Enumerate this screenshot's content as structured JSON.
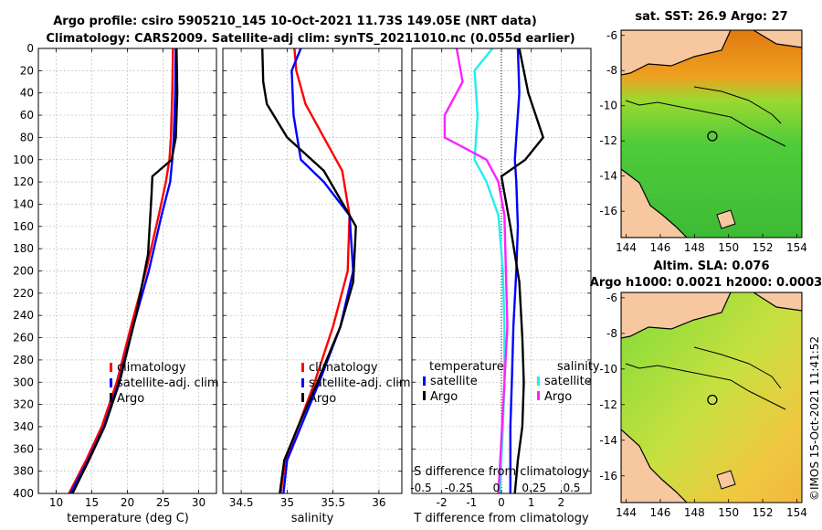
{
  "title": {
    "line1": "Argo profile: csiro 5905210_145 10-Oct-2021 11.73S 149.05E (NRT data)",
    "line2": "Climatology: CARS2009. Satellite-adj clim: synTS_20211010.nc (0.055d earlier)"
  },
  "footer": "©IMOS 15-Oct-2021 11:41:52",
  "colors": {
    "climatology": "#ff0000",
    "satellite": "#0000ff",
    "argo": "#000000",
    "s_satellite": "#22eeee",
    "s_argo": "#ff22ff",
    "land": "#f7c8a0",
    "coast": "#000000",
    "map_marker": "#000000"
  },
  "legend": {
    "climatology": "climatology",
    "satellite_adj": "satellite-adj. clim",
    "argo": "Argo",
    "temperature": "temperature",
    "salinity": "salinity",
    "satellite": "satellite"
  },
  "chart_data": [
    {
      "id": "temperature",
      "type": "line",
      "xlabel": "temperature (deg C)",
      "ylabel": "",
      "xlim": [
        7.5,
        32.5
      ],
      "xticks": [
        10,
        15,
        20,
        25,
        30
      ],
      "ylim": [
        0,
        400
      ],
      "yticks": [
        0,
        20,
        40,
        60,
        80,
        100,
        120,
        140,
        160,
        180,
        200,
        220,
        240,
        260,
        280,
        300,
        320,
        340,
        360,
        380,
        400
      ],
      "y_reversed": true,
      "grid": true,
      "series": [
        {
          "name": "climatology",
          "color": "red",
          "x": [
            26.4,
            26.3,
            26.1,
            25.9,
            25.4,
            24.4,
            22.6,
            20.5,
            18.5,
            16.4,
            14.2,
            11.8
          ],
          "y": [
            0,
            40,
            80,
            100,
            120,
            150,
            200,
            250,
            300,
            340,
            370,
            400
          ]
        },
        {
          "name": "satellite-adj. clim",
          "color": "blue",
          "x": [
            26.8,
            26.7,
            26.5,
            26.3,
            26.0,
            24.8,
            23.0,
            20.8,
            18.8,
            16.7,
            14.5,
            12.0
          ],
          "y": [
            0,
            40,
            80,
            100,
            120,
            150,
            200,
            250,
            300,
            340,
            370,
            400
          ]
        },
        {
          "name": "Argo",
          "color": "black",
          "x": [
            26.9,
            27.0,
            26.8,
            26.2,
            23.5,
            23.4,
            22.9,
            21.2,
            18.9,
            16.8,
            14.6,
            12.3
          ],
          "y": [
            0,
            40,
            80,
            100,
            115,
            130,
            185,
            240,
            300,
            340,
            370,
            400
          ]
        }
      ]
    },
    {
      "id": "salinity",
      "type": "line",
      "xlabel": "salinity",
      "ylabel": "",
      "xlim": [
        34.3,
        36.25
      ],
      "xticks": [
        34.5,
        35,
        35.5,
        36
      ],
      "xtick_labels": [
        "34.5",
        "35",
        "35.5",
        "36"
      ],
      "ylim": [
        0,
        400
      ],
      "y_reversed": true,
      "grid": true,
      "series": [
        {
          "name": "climatology",
          "color": "red",
          "x": [
            35.08,
            35.1,
            35.2,
            35.4,
            35.6,
            35.68,
            35.66,
            35.5,
            35.3,
            35.12,
            34.98,
            34.93
          ],
          "y": [
            0,
            20,
            50,
            80,
            110,
            150,
            200,
            250,
            300,
            340,
            370,
            400
          ]
        },
        {
          "name": "satellite-adj. clim",
          "color": "blue",
          "x": [
            35.15,
            35.05,
            35.07,
            35.15,
            35.4,
            35.68,
            35.72,
            35.58,
            35.35,
            35.15,
            35.0,
            34.96
          ],
          "y": [
            0,
            20,
            60,
            100,
            120,
            150,
            200,
            250,
            300,
            340,
            370,
            400
          ]
        },
        {
          "name": "Argo",
          "color": "black",
          "x": [
            34.73,
            34.74,
            34.78,
            35.0,
            35.4,
            35.75,
            35.72,
            35.58,
            35.33,
            35.12,
            34.97,
            34.92
          ],
          "y": [
            0,
            30,
            50,
            80,
            110,
            160,
            210,
            250,
            300,
            340,
            370,
            400
          ]
        }
      ]
    },
    {
      "id": "differences",
      "type": "line",
      "xlabel": "T difference from climatology",
      "x2label": "S difference from climatology",
      "xlim": [
        -3,
        3
      ],
      "xticks": [
        -2,
        -1,
        0,
        1,
        2
      ],
      "xtick_labels": [
        "-2",
        "-1",
        "0",
        "1",
        "2"
      ],
      "x2ticks": [
        -0.5,
        -0.25,
        0,
        0.25,
        0.5
      ],
      "x2tick_labels": [
        "-0.5",
        "-0.25",
        "0",
        "0.25",
        "0.5"
      ],
      "ylim": [
        0,
        400
      ],
      "y_reversed": true,
      "grid": true,
      "series": [
        {
          "name": "temperature satellite",
          "color": "blue",
          "x": [
            0.55,
            0.6,
            0.5,
            0.45,
            0.5,
            0.55,
            0.5,
            0.4,
            0.35,
            0.3,
            0.3,
            0.3
          ],
          "y": [
            0,
            40,
            80,
            100,
            120,
            160,
            200,
            250,
            300,
            340,
            370,
            400
          ]
        },
        {
          "name": "temperature Argo",
          "color": "black",
          "x": [
            0.6,
            0.9,
            1.4,
            0.8,
            0,
            0.3,
            0.6,
            0.7,
            0.75,
            0.7,
            0.55,
            0.45
          ],
          "y": [
            0,
            40,
            80,
            100,
            115,
            160,
            210,
            260,
            300,
            340,
            370,
            400
          ]
        },
        {
          "name": "salinity satellite",
          "color": "cyan",
          "x": [
            -0.3,
            -0.9,
            -0.8,
            -0.9,
            -0.5,
            -0.1,
            0.05,
            0.1,
            0.1,
            0.05,
            0.0,
            -0.05
          ],
          "y": [
            0,
            20,
            60,
            100,
            120,
            150,
            200,
            250,
            300,
            340,
            370,
            400
          ]
        },
        {
          "name": "salinity Argo",
          "color": "magenta",
          "x": [
            -1.5,
            -1.3,
            -1.9,
            -1.9,
            -0.5,
            -0.1,
            0.1,
            0.15,
            0.2,
            0.1,
            0.0,
            -0.1
          ],
          "y": [
            0,
            30,
            60,
            80,
            100,
            120,
            150,
            200,
            250,
            300,
            350,
            400
          ]
        }
      ]
    },
    {
      "id": "sst_map",
      "type": "heatmap",
      "title": "sat. SST: 26.9 Argo: 27",
      "xlim": [
        143.7,
        154.3
      ],
      "xticks": [
        144,
        146,
        148,
        150,
        152,
        154
      ],
      "ylim": [
        -17.5,
        -5.7
      ],
      "yticks": [
        -6,
        -8,
        -10,
        -12,
        -14,
        -16
      ],
      "marker": {
        "lon": 149.05,
        "lat": -11.73
      }
    },
    {
      "id": "sla_map",
      "type": "heatmap",
      "title": "Altim. SLA: 0.076",
      "subtitle": "Argo h1000: 0.0021 h2000: 0.0003",
      "xlim": [
        143.7,
        154.3
      ],
      "xticks": [
        144,
        146,
        148,
        150,
        152,
        154
      ],
      "ylim": [
        -17.5,
        -5.7
      ],
      "yticks": [
        -6,
        -8,
        -10,
        -12,
        -14,
        -16
      ],
      "marker": {
        "lon": 149.05,
        "lat": -11.73
      }
    }
  ]
}
